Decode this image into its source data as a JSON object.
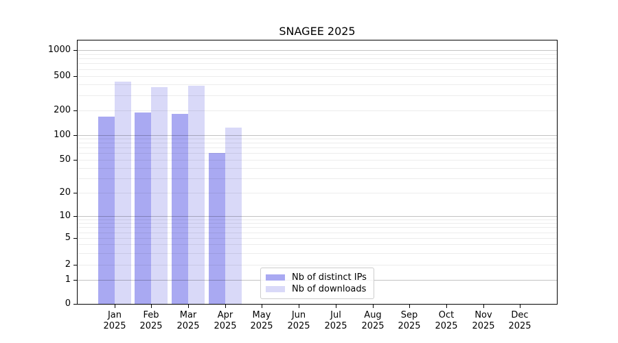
{
  "title": "SNAGEE 2025",
  "chart_data": {
    "type": "bar",
    "title": "SNAGEE 2025",
    "xlabel": "",
    "ylabel": "",
    "y_scale": "symlog",
    "ylim": [
      0,
      1290
    ],
    "y_ticks": [
      0,
      1,
      2,
      5,
      10,
      20,
      50,
      100,
      200,
      500,
      1000
    ],
    "grid": "horizontal major+minor, drawn over bars",
    "legend_position": "lower center",
    "categories": [
      "Jan",
      "Feb",
      "Mar",
      "Apr",
      "May",
      "Jun",
      "Jul",
      "Aug",
      "Sep",
      "Oct",
      "Nov",
      "Dec"
    ],
    "year_label": "2025",
    "series": [
      {
        "name": "Nb of distinct IPs",
        "color": "#a9a9f2",
        "values": [
          168,
          190,
          182,
          60,
          0,
          0,
          0,
          0,
          0,
          0,
          0,
          0
        ]
      },
      {
        "name": "Nb of downloads",
        "color": "#d9d9f8",
        "values": [
          425,
          368,
          385,
          123,
          0,
          0,
          0,
          0,
          0,
          0,
          0,
          0
        ]
      }
    ]
  }
}
